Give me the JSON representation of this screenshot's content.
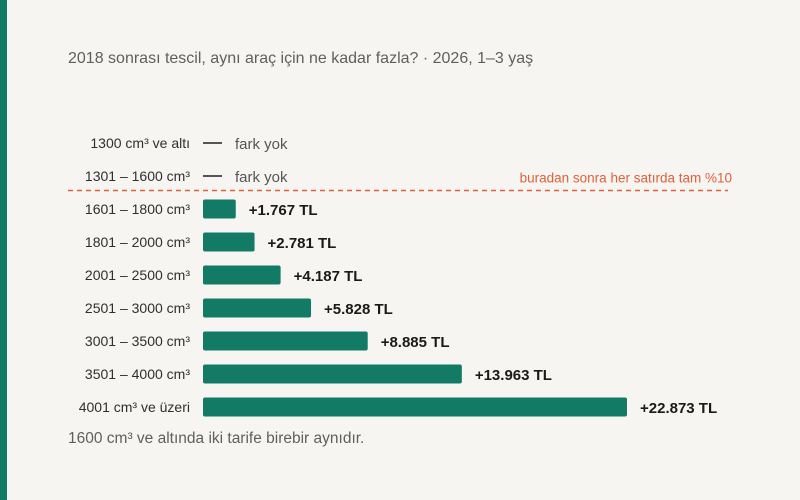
{
  "header": {
    "title": "2018 sonrası tescil, aynı araç için ne kadar fazla? · 2026, 1–3 yaş"
  },
  "footer": {
    "note": "1600 cm³ ve altında iki tarife birebir aynıdır."
  },
  "colors": {
    "bar": "#137a66",
    "accent_line": "#e0603a",
    "no_diff_dash": "#555555"
  },
  "chart_data": {
    "type": "bar",
    "orientation": "horizontal",
    "title": "2018 sonrası tescil, aynı araç için ne kadar fazla? · 2026, 1–3 yaş",
    "categories": [
      "1300 cm³ ve altı",
      "1301 – 1600 cm³",
      "1601 – 1800 cm³",
      "1801 – 2000 cm³",
      "2001 – 2500 cm³",
      "2501 – 3000 cm³",
      "3001 – 3500 cm³",
      "3501 – 4000 cm³",
      "4001 cm³ ve üzeri"
    ],
    "values": [
      0,
      0,
      1767,
      2781,
      4187,
      5828,
      8885,
      13963,
      22873
    ],
    "value_labels": [
      "fark yok",
      "fark yok",
      "+1.767 TL",
      "+2.781 TL",
      "+4.187 TL",
      "+5.828 TL",
      "+8.885 TL",
      "+13.963 TL",
      "+22.873 TL"
    ],
    "annotation": {
      "text": "buradan sonra her satırda tam %10",
      "after_category_index": 1
    },
    "xlim": [
      0,
      22873
    ],
    "grid": false,
    "legend": false
  }
}
